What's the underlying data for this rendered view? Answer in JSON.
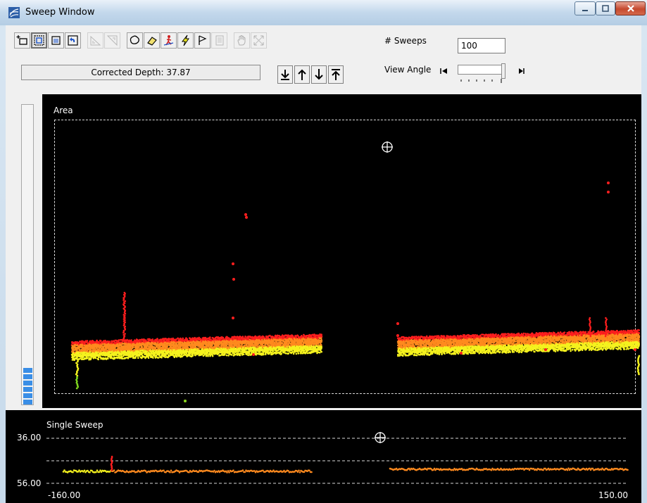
{
  "window": {
    "title": "Sweep Window",
    "app_icon": "sweep-app-icon"
  },
  "caption_buttons": [
    {
      "name": "minimize-button",
      "icon": "minimize-icon"
    },
    {
      "name": "maximize-button",
      "icon": "maximize-icon"
    },
    {
      "name": "close-button",
      "icon": "close-icon"
    }
  ],
  "toolbar": {
    "tools": [
      {
        "name": "new-selection-tool",
        "icon": "new-box-icon",
        "enabled": true,
        "pressed": false
      },
      {
        "name": "select-box-tool",
        "icon": "select-box-icon",
        "enabled": true,
        "pressed": true
      },
      {
        "name": "list-view-tool",
        "icon": "list-icon",
        "enabled": true,
        "pressed": false
      },
      {
        "name": "undo-view-tool",
        "icon": "undo-icon",
        "enabled": true,
        "pressed": false
      },
      {
        "name": "slope-up-tool",
        "icon": "slope-up-icon",
        "enabled": false,
        "pressed": false
      },
      {
        "name": "slope-down-tool",
        "icon": "slope-down-icon",
        "enabled": false,
        "pressed": false
      },
      {
        "name": "lasso-tool",
        "icon": "lasso-icon",
        "enabled": true,
        "pressed": false
      },
      {
        "name": "eraser-tool",
        "icon": "eraser-icon",
        "enabled": true,
        "pressed": false
      },
      {
        "name": "person-marker-tool",
        "icon": "person-marker-icon",
        "enabled": true,
        "pressed": false
      },
      {
        "name": "lightning-tool",
        "icon": "lightning-icon",
        "enabled": true,
        "pressed": false
      },
      {
        "name": "flag-tool",
        "icon": "flag-icon",
        "enabled": true,
        "pressed": false
      },
      {
        "name": "document-tool",
        "icon": "document-icon",
        "enabled": false,
        "pressed": false
      },
      {
        "name": "pan-tool",
        "icon": "hand-icon",
        "enabled": false,
        "pressed": false
      },
      {
        "name": "zoom-extents-tool",
        "icon": "zoom-extents-icon",
        "enabled": false,
        "pressed": false
      }
    ],
    "corrected_depth_label": "Corrected Depth: 37.87",
    "depth_buttons": [
      {
        "name": "move-to-bottom-button",
        "icon": "arrow-to-bottom-icon"
      },
      {
        "name": "move-up-button",
        "icon": "arrow-up-icon"
      },
      {
        "name": "move-down-button",
        "icon": "arrow-down-icon"
      },
      {
        "name": "move-to-top-button",
        "icon": "arrow-to-top-icon"
      }
    ],
    "sweeps_label": "# Sweeps",
    "sweeps_value": "100",
    "view_angle_label": "View Angle",
    "view_angle_level": 1.0
  },
  "meter": {
    "level_segments": 6,
    "color": "#3a8ee6"
  },
  "area_panel": {
    "label": "Area"
  },
  "single_sweep_panel": {
    "label": "Single Sweep",
    "y_ticks": [
      "36.00",
      "56.00"
    ],
    "x_ticks": [
      "-160.00",
      "150.00"
    ]
  },
  "colors": {
    "plot_bg": "#000000",
    "point_red": "#ff1e1e",
    "point_orange": "#ff8a1e",
    "point_yellow": "#f5f21e",
    "point_green": "#7fd61e"
  }
}
